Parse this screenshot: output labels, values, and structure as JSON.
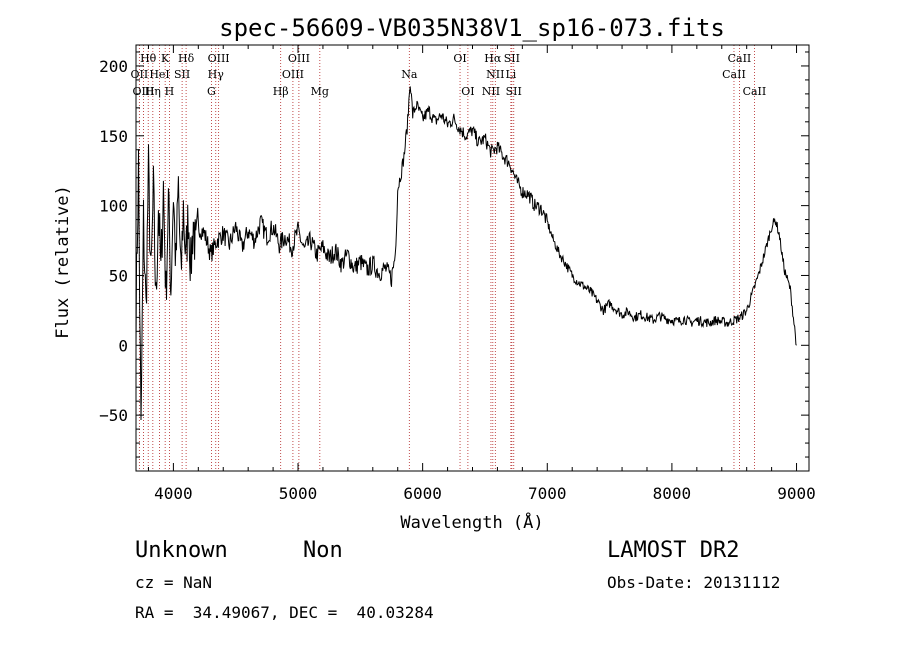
{
  "chart_data": {
    "type": "line",
    "title": "spec-56609-VB035N38V1_sp16-073.fits",
    "xlabel": "Wavelength (Å)",
    "ylabel": "Flux (relative)",
    "xlim": [
      3700,
      9100
    ],
    "ylim": [
      -90,
      215
    ],
    "x_ticks": [
      4000,
      5000,
      6000,
      7000,
      8000,
      9000
    ],
    "y_ticks": [
      -50,
      0,
      50,
      100,
      150,
      200
    ],
    "grid": false,
    "series": [
      {
        "points": [
          [
            3700,
            20
          ],
          [
            3720,
            130
          ],
          [
            3740,
            -65
          ],
          [
            3760,
            90
          ],
          [
            3780,
            25
          ],
          [
            3800,
            125
          ],
          [
            3820,
            45
          ],
          [
            3840,
            110
          ],
          [
            3860,
            30
          ],
          [
            3880,
            100
          ],
          [
            3900,
            50
          ],
          [
            3920,
            115
          ],
          [
            3940,
            35
          ],
          [
            3960,
            105
          ],
          [
            3980,
            40
          ],
          [
            4000,
            110
          ],
          [
            4020,
            55
          ],
          [
            4040,
            115
          ],
          [
            4060,
            45
          ],
          [
            4080,
            100
          ],
          [
            4100,
            60
          ],
          [
            4120,
            95
          ],
          [
            4140,
            55
          ],
          [
            4160,
            90
          ],
          [
            4180,
            65
          ],
          [
            4200,
            85
          ],
          [
            4250,
            80
          ],
          [
            4300,
            65
          ],
          [
            4350,
            75
          ],
          [
            4400,
            80
          ],
          [
            4450,
            72
          ],
          [
            4500,
            85
          ],
          [
            4550,
            70
          ],
          [
            4600,
            82
          ],
          [
            4650,
            75
          ],
          [
            4700,
            88
          ],
          [
            4750,
            78
          ],
          [
            4800,
            85
          ],
          [
            4850,
            72
          ],
          [
            4900,
            78
          ],
          [
            4950,
            70
          ],
          [
            5000,
            82
          ],
          [
            5050,
            68
          ],
          [
            5100,
            75
          ],
          [
            5150,
            65
          ],
          [
            5200,
            70
          ],
          [
            5250,
            62
          ],
          [
            5300,
            68
          ],
          [
            5350,
            58
          ],
          [
            5400,
            65
          ],
          [
            5450,
            55
          ],
          [
            5500,
            60
          ],
          [
            5550,
            54
          ],
          [
            5600,
            58
          ],
          [
            5650,
            52
          ],
          [
            5700,
            55
          ],
          [
            5750,
            48
          ],
          [
            5780,
            65
          ],
          [
            5800,
            112
          ],
          [
            5830,
            125
          ],
          [
            5850,
            135
          ],
          [
            5880,
            160
          ],
          [
            5900,
            190
          ],
          [
            5920,
            165
          ],
          [
            5950,
            172
          ],
          [
            6000,
            162
          ],
          [
            6050,
            168
          ],
          [
            6100,
            160
          ],
          [
            6150,
            165
          ],
          [
            6200,
            158
          ],
          [
            6250,
            162
          ],
          [
            6300,
            155
          ],
          [
            6350,
            150
          ],
          [
            6400,
            154
          ],
          [
            6450,
            145
          ],
          [
            6500,
            148
          ],
          [
            6550,
            138
          ],
          [
            6600,
            142
          ],
          [
            6650,
            135
          ],
          [
            6700,
            130
          ],
          [
            6750,
            118
          ],
          [
            6800,
            110
          ],
          [
            6850,
            108
          ],
          [
            6900,
            100
          ],
          [
            6950,
            98
          ],
          [
            7000,
            88
          ],
          [
            7050,
            75
          ],
          [
            7100,
            65
          ],
          [
            7150,
            58
          ],
          [
            7200,
            50
          ],
          [
            7250,
            45
          ],
          [
            7300,
            42
          ],
          [
            7350,
            38
          ],
          [
            7400,
            32
          ],
          [
            7450,
            25
          ],
          [
            7500,
            30
          ],
          [
            7550,
            26
          ],
          [
            7600,
            22
          ],
          [
            7650,
            24
          ],
          [
            7700,
            20
          ],
          [
            7750,
            22
          ],
          [
            7800,
            20
          ],
          [
            7850,
            18
          ],
          [
            7900,
            21
          ],
          [
            7950,
            19
          ],
          [
            8000,
            18
          ],
          [
            8050,
            17
          ],
          [
            8100,
            19
          ],
          [
            8150,
            16
          ],
          [
            8200,
            18
          ],
          [
            8250,
            17
          ],
          [
            8300,
            16
          ],
          [
            8350,
            18
          ],
          [
            8400,
            17
          ],
          [
            8450,
            16
          ],
          [
            8500,
            18
          ],
          [
            8550,
            20
          ],
          [
            8600,
            25
          ],
          [
            8650,
            38
          ],
          [
            8700,
            52
          ],
          [
            8750,
            68
          ],
          [
            8800,
            85
          ],
          [
            8830,
            90
          ],
          [
            8860,
            80
          ],
          [
            8900,
            55
          ],
          [
            8950,
            40
          ],
          [
            9000,
            0
          ]
        ]
      }
    ],
    "line_markers": [
      {
        "label": "Hθ",
        "wl": 3798,
        "row": 0
      },
      {
        "label": "OII",
        "wl": 3727,
        "row": 1
      },
      {
        "label": "OIII",
        "wl": 3760,
        "row": 2
      },
      {
        "label": "K",
        "wl": 3934,
        "row": 0
      },
      {
        "label": "Hη",
        "wl": 3835,
        "row": 2
      },
      {
        "label": "HeI",
        "wl": 3889,
        "row": 1
      },
      {
        "label": "H",
        "wl": 3968,
        "row": 2
      },
      {
        "label": "Hδ",
        "wl": 4102,
        "row": 0
      },
      {
        "label": "SII",
        "wl": 4070,
        "row": 1
      },
      {
        "label": "OIII",
        "wl": 4363,
        "row": 0
      },
      {
        "label": "Hγ",
        "wl": 4340,
        "row": 1
      },
      {
        "label": "G",
        "wl": 4305,
        "row": 2
      },
      {
        "label": "Hβ",
        "wl": 4861,
        "row": 2
      },
      {
        "label": "OIII",
        "wl": 5007,
        "row": 0
      },
      {
        "label": "OIII",
        "wl": 4959,
        "row": 1
      },
      {
        "label": "Mg",
        "wl": 5175,
        "row": 2
      },
      {
        "label": "Na",
        "wl": 5893,
        "row": 1
      },
      {
        "label": "OI",
        "wl": 6300,
        "row": 0
      },
      {
        "label": "OI",
        "wl": 6363,
        "row": 2
      },
      {
        "label": "Hα",
        "wl": 6563,
        "row": 0
      },
      {
        "label": "NII",
        "wl": 6583,
        "row": 1
      },
      {
        "label": "NII",
        "wl": 6548,
        "row": 2
      },
      {
        "label": "SII",
        "wl": 6716,
        "row": 0
      },
      {
        "label": "Li",
        "wl": 6708,
        "row": 1
      },
      {
        "label": "SII",
        "wl": 6731,
        "row": 2
      },
      {
        "label": "CaII",
        "wl": 8542,
        "row": 0
      },
      {
        "label": "CaII",
        "wl": 8498,
        "row": 1
      },
      {
        "label": "CaII",
        "wl": 8662,
        "row": 2
      }
    ]
  },
  "info": {
    "class_text": "Unknown",
    "subclass_text": "Non",
    "survey": "LAMOST DR2",
    "cz": "cz = NaN",
    "obs_date": "Obs-Date: 20131112",
    "radec": "RA =  34.49067, DEC =  40.03284"
  }
}
